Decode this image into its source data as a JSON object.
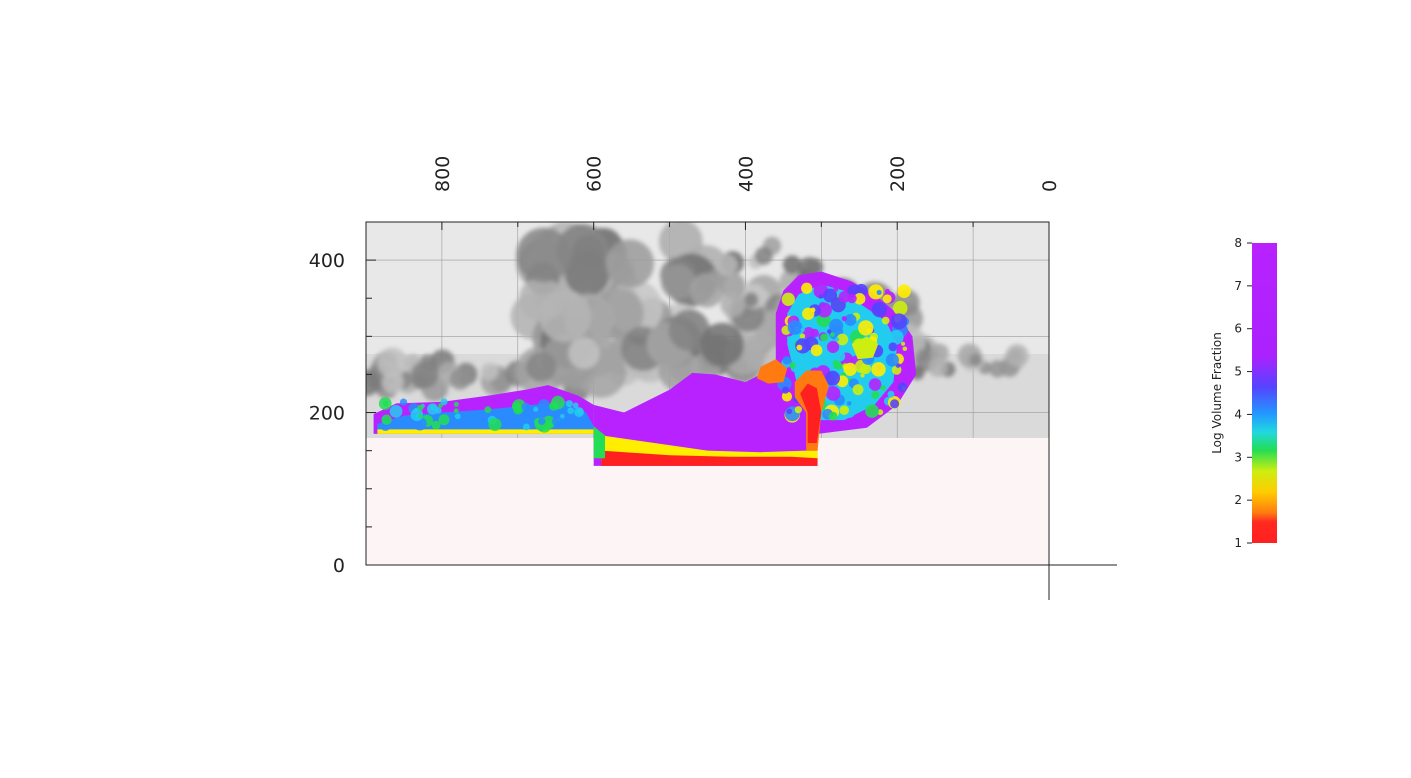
{
  "chart_data": {
    "type": "heatmap",
    "title": "",
    "x_axis": {
      "ticks": [
        800,
        600,
        400,
        200,
        0
      ],
      "tick_labels": [
        "800",
        "600",
        "400",
        "200",
        "0"
      ],
      "range": [
        900,
        0
      ],
      "reversed": true
    },
    "y_axis": {
      "ticks": [
        0,
        200,
        400
      ],
      "tick_labels": [
        "0",
        "200",
        "400"
      ],
      "range": [
        0,
        450
      ]
    },
    "grid": true,
    "colorbar": {
      "label": "Log Volume Fraction",
      "range": [
        1,
        8
      ],
      "ticks": [
        1,
        2,
        3,
        4,
        5,
        6,
        7,
        8
      ],
      "tick_labels": [
        "1",
        "2",
        "3",
        "4",
        "5",
        "6",
        "7",
        "8"
      ],
      "colors": [
        "#ff2020",
        "#ff9900",
        "#ffee00",
        "#22dd44",
        "#22ccee",
        "#3377ff",
        "#9922ee",
        "#bb22ff"
      ],
      "placement": "right"
    },
    "terrain": {
      "ground_level": 165,
      "depression": {
        "x_from": 600,
        "x_to": 305,
        "floor": 130
      }
    },
    "isosurface_color": "#9a9a9a"
  }
}
